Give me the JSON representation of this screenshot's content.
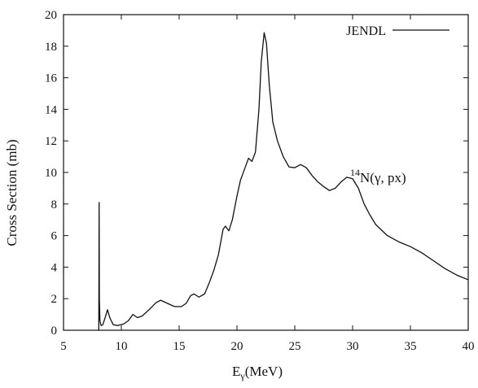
{
  "chart_data": {
    "type": "line",
    "title": "",
    "xlabel": "E_γ (MeV)",
    "xlabel_main": "E",
    "xlabel_sub": "γ",
    "xlabel_unit": "(MeV)",
    "ylabel": "Cross Section (mb)",
    "xlim": [
      5,
      40
    ],
    "ylim": [
      0,
      20
    ],
    "xticks": [
      5,
      10,
      15,
      20,
      25,
      30,
      35,
      40
    ],
    "yticks": [
      0,
      2,
      4,
      6,
      8,
      10,
      12,
      14,
      16,
      18,
      20
    ],
    "grid": false,
    "legend": {
      "position": "top-right",
      "entries": [
        "JENDL"
      ]
    },
    "annotation": {
      "sup": "14",
      "text": "N(γ, px)"
    },
    "series": [
      {
        "name": "JENDL",
        "color": "#111111",
        "points": [
          [
            8.05,
            0
          ],
          [
            8.08,
            8.1
          ],
          [
            8.1,
            2.0
          ],
          [
            8.15,
            0.6
          ],
          [
            8.25,
            0.3
          ],
          [
            8.4,
            0.35
          ],
          [
            8.6,
            0.8
          ],
          [
            8.8,
            1.3
          ],
          [
            9.0,
            0.8
          ],
          [
            9.3,
            0.35
          ],
          [
            9.7,
            0.3
          ],
          [
            10.2,
            0.4
          ],
          [
            10.6,
            0.6
          ],
          [
            11.0,
            1.0
          ],
          [
            11.4,
            0.8
          ],
          [
            11.8,
            0.9
          ],
          [
            12.4,
            1.3
          ],
          [
            13.0,
            1.75
          ],
          [
            13.4,
            1.9
          ],
          [
            14.0,
            1.7
          ],
          [
            14.6,
            1.5
          ],
          [
            15.2,
            1.5
          ],
          [
            15.6,
            1.7
          ],
          [
            16.0,
            2.2
          ],
          [
            16.3,
            2.3
          ],
          [
            16.7,
            2.1
          ],
          [
            17.2,
            2.3
          ],
          [
            17.6,
            3.0
          ],
          [
            18.0,
            3.8
          ],
          [
            18.4,
            4.8
          ],
          [
            18.8,
            6.4
          ],
          [
            19.0,
            6.6
          ],
          [
            19.3,
            6.3
          ],
          [
            19.6,
            7.0
          ],
          [
            20.0,
            8.5
          ],
          [
            20.3,
            9.5
          ],
          [
            20.7,
            10.3
          ],
          [
            21.0,
            10.9
          ],
          [
            21.3,
            10.7
          ],
          [
            21.6,
            11.3
          ],
          [
            21.9,
            14.0
          ],
          [
            22.1,
            17.0
          ],
          [
            22.35,
            18.85
          ],
          [
            22.55,
            18.2
          ],
          [
            22.8,
            15.5
          ],
          [
            23.1,
            13.2
          ],
          [
            23.5,
            12.0
          ],
          [
            24.0,
            11.0
          ],
          [
            24.5,
            10.35
          ],
          [
            25.0,
            10.3
          ],
          [
            25.5,
            10.5
          ],
          [
            26.0,
            10.3
          ],
          [
            26.5,
            9.8
          ],
          [
            27.0,
            9.4
          ],
          [
            27.5,
            9.1
          ],
          [
            28.0,
            8.85
          ],
          [
            28.5,
            9.0
          ],
          [
            29.0,
            9.4
          ],
          [
            29.5,
            9.7
          ],
          [
            30.0,
            9.6
          ],
          [
            30.5,
            9.0
          ],
          [
            31.0,
            8.0
          ],
          [
            31.5,
            7.3
          ],
          [
            32.0,
            6.7
          ],
          [
            33.0,
            6.0
          ],
          [
            34.0,
            5.6
          ],
          [
            35.0,
            5.3
          ],
          [
            36.0,
            4.9
          ],
          [
            37.0,
            4.4
          ],
          [
            38.0,
            3.9
          ],
          [
            39.0,
            3.5
          ],
          [
            40.0,
            3.2
          ]
        ]
      }
    ]
  }
}
